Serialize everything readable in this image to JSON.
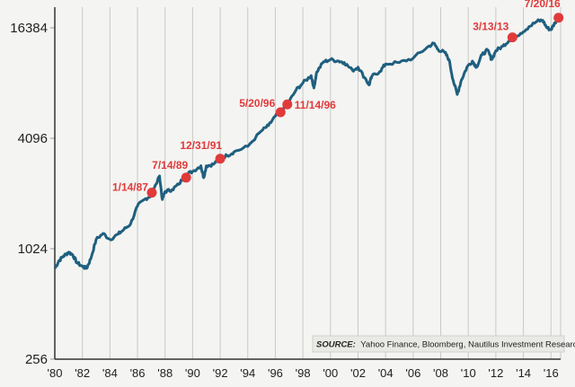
{
  "chart_data": {
    "type": "line",
    "title": "",
    "xlabel": "",
    "ylabel": "",
    "y_scale": "log2",
    "ylim": [
      256,
      20000
    ],
    "xlim": [
      1980,
      2016.7
    ],
    "y_ticks": [
      16384,
      4096,
      1024,
      256
    ],
    "x_ticks": [
      {
        "value": 1980,
        "label": "'80"
      },
      {
        "value": 1982,
        "label": "'82"
      },
      {
        "value": 1984,
        "label": "'84"
      },
      {
        "value": 1986,
        "label": "'86"
      },
      {
        "value": 1988,
        "label": "'88"
      },
      {
        "value": 1990,
        "label": "'90"
      },
      {
        "value": 1992,
        "label": "'92"
      },
      {
        "value": 1994,
        "label": "'94"
      },
      {
        "value": 1996,
        "label": "'96"
      },
      {
        "value": 1998,
        "label": "'98"
      },
      {
        "value": 2000,
        "label": "'00"
      },
      {
        "value": 2002,
        "label": "'02"
      },
      {
        "value": 2004,
        "label": "'04"
      },
      {
        "value": 2006,
        "label": "'06"
      },
      {
        "value": 2008,
        "label": "'08"
      },
      {
        "value": 2010,
        "label": "'10"
      },
      {
        "value": 2012,
        "label": "'12"
      },
      {
        "value": 2014,
        "label": "'14"
      },
      {
        "value": 2016,
        "label": "'16"
      }
    ],
    "grid": "vertical",
    "line_color": "#1f5f7f",
    "marker_color": "#e03a3a",
    "series": [
      {
        "x": [
          1980.0,
          1980.3,
          1980.6,
          1981.0,
          1981.3,
          1981.6,
          1982.0,
          1982.3,
          1982.6,
          1983.0,
          1983.5,
          1984.0,
          1984.6,
          1985.0,
          1985.5,
          1986.0,
          1986.5,
          1987.0,
          1987.6,
          1987.8,
          1988.0,
          1988.5,
          1989.0,
          1989.5,
          1990.0,
          1990.6,
          1990.8,
          1991.0,
          1991.5,
          1992.0,
          1992.5,
          1993.0,
          1994.0,
          1995.0,
          1995.5,
          1996.0,
          1996.4,
          1996.9,
          1997.5,
          1998.0,
          1998.6,
          1998.8,
          1999.0,
          1999.5,
          2000.0,
          2000.6,
          2001.0,
          2001.6,
          2002.0,
          2002.6,
          2002.8,
          2003.0,
          2003.6,
          2004.0,
          2005.0,
          2006.0,
          2007.0,
          2007.5,
          2007.8,
          2008.3,
          2008.6,
          2008.9,
          2009.2,
          2009.5,
          2009.9,
          2010.3,
          2010.6,
          2011.0,
          2011.4,
          2011.7,
          2012.0,
          2012.5,
          2013.0,
          2013.2,
          2013.8,
          2014.4,
          2015.0,
          2015.4,
          2015.7,
          2016.0,
          2016.3,
          2016.55
        ],
        "y": [
          800,
          880,
          930,
          980,
          950,
          860,
          820,
          800,
          900,
          1150,
          1240,
          1150,
          1230,
          1300,
          1400,
          1750,
          1900,
          2000,
          2550,
          1900,
          2100,
          2150,
          2300,
          2600,
          2700,
          2900,
          2500,
          2900,
          2950,
          3200,
          3300,
          3450,
          3700,
          4500,
          4800,
          5400,
          5700,
          6300,
          7500,
          8200,
          9000,
          7700,
          9400,
          10700,
          11000,
          10800,
          10600,
          9600,
          10000,
          8500,
          8000,
          8900,
          9500,
          10400,
          10600,
          11200,
          12800,
          13500,
          12500,
          12000,
          11000,
          8500,
          7100,
          8500,
          10000,
          10800,
          10000,
          11700,
          12400,
          11000,
          12300,
          13000,
          14100,
          14500,
          15300,
          16600,
          17800,
          18000,
          16400,
          16000,
          17500,
          18600
        ]
      }
    ],
    "annotations": [
      {
        "label": "1/14/87",
        "x": 1987.04,
        "y": 2070
      },
      {
        "label": "7/14/89",
        "x": 1989.53,
        "y": 2500
      },
      {
        "label": "12/31/91",
        "x": 1992.0,
        "y": 3168
      },
      {
        "label": "5/20/96",
        "x": 1996.38,
        "y": 5680
      },
      {
        "label": "11/14/96",
        "x": 1996.87,
        "y": 6270
      },
      {
        "label": "3/13/13",
        "x": 2013.2,
        "y": 14540
      },
      {
        "label": "7/20/16",
        "x": 2016.55,
        "y": 18600
      }
    ]
  },
  "source": {
    "label": "SOURCE:",
    "text": "Yahoo Finance, Bloomberg, Nautilus Investment Research"
  }
}
